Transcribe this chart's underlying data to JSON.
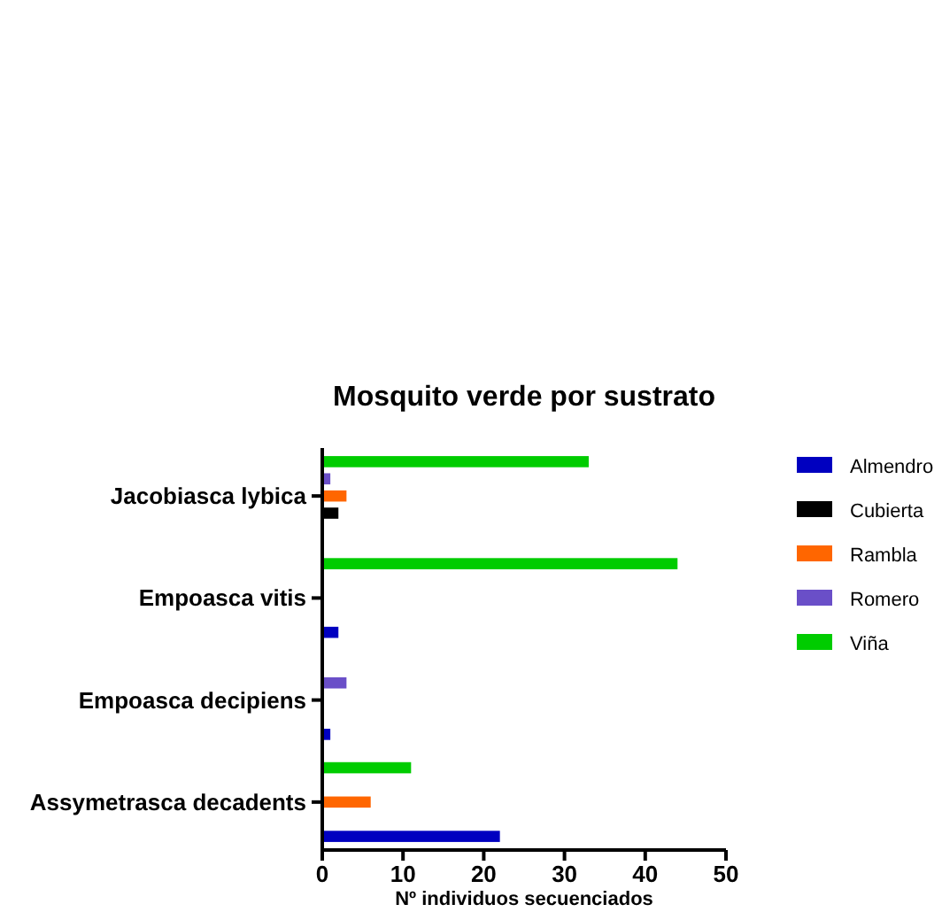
{
  "chart_data": {
    "type": "bar",
    "orientation": "horizontal",
    "title": "Mosquito verde por sustrato",
    "xlabel": "Nº individuos secuenciados",
    "categories": [
      "Jacobiasca lybica",
      "Empoasca vitis",
      "Empoasca decipiens",
      "Assymetrasca decadents"
    ],
    "series": [
      {
        "name": "Almendro",
        "color": "#0000c0",
        "values": [
          0,
          2,
          1,
          22
        ]
      },
      {
        "name": "Cubierta",
        "color": "#000000",
        "values": [
          2,
          0,
          0,
          0
        ]
      },
      {
        "name": "Rambla",
        "color": "#ff6600",
        "values": [
          3,
          0,
          0,
          6
        ]
      },
      {
        "name": "Romero",
        "color": "#6a4fc8",
        "values": [
          1,
          0,
          3,
          0
        ]
      },
      {
        "name": "Viña",
        "color": "#00cc00",
        "values": [
          33,
          44,
          0,
          11
        ]
      }
    ],
    "xlim": [
      0,
      50
    ],
    "xticks": [
      0,
      10,
      20,
      30,
      40,
      50
    ],
    "legend": "right",
    "grid": false
  }
}
